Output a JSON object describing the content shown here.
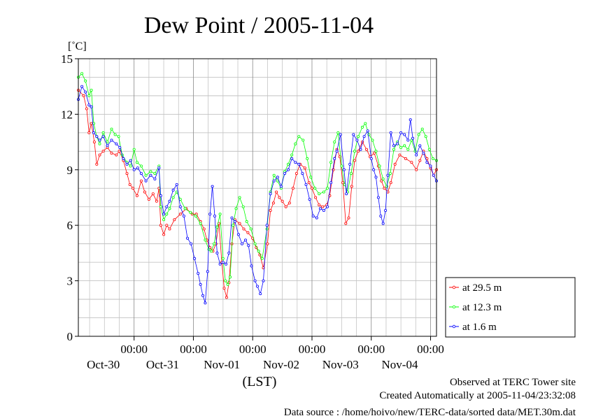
{
  "title": "Dew Point / 2005-11-04",
  "chart_data": {
    "type": "line",
    "title": "Dew Point / 2005-11-04",
    "ylabel": "[˚C]",
    "xlabel": "(LST)",
    "ylim": [
      0,
      15
    ],
    "yticks": [
      0,
      3,
      6,
      9,
      12,
      15
    ],
    "grid": true,
    "legend_position": "right",
    "time_tick_label": "00:00",
    "x_labels": [
      "Oct-30",
      "Oct-31",
      "Nov-01",
      "Nov-02",
      "Nov-03",
      "Nov-04"
    ],
    "x_start_day_offset": -0.94,
    "x_end_day_offset": 5.1,
    "series": [
      {
        "name": "at 29.5 m",
        "color": "#ff0000",
        "points": [
          [
            -0.94,
            13.3
          ],
          [
            -0.85,
            13.0
          ],
          [
            -0.8,
            12.3
          ],
          [
            -0.76,
            11.0
          ],
          [
            -0.72,
            11.5
          ],
          [
            -0.67,
            10.5
          ],
          [
            -0.63,
            9.3
          ],
          [
            -0.58,
            9.8
          ],
          [
            -0.52,
            10.0
          ],
          [
            -0.45,
            10.2
          ],
          [
            -0.38,
            9.9
          ],
          [
            -0.3,
            9.8
          ],
          [
            -0.25,
            10.0
          ],
          [
            -0.18,
            9.5
          ],
          [
            -0.12,
            8.8
          ],
          [
            -0.07,
            8.2
          ],
          [
            -0.02,
            8.0
          ],
          [
            0.05,
            7.6
          ],
          [
            0.12,
            8.4
          ],
          [
            0.18,
            7.8
          ],
          [
            0.25,
            7.4
          ],
          [
            0.32,
            7.7
          ],
          [
            0.38,
            7.3
          ],
          [
            0.42,
            8.0
          ],
          [
            0.45,
            6.0
          ],
          [
            0.5,
            5.5
          ],
          [
            0.55,
            6.0
          ],
          [
            0.6,
            5.8
          ],
          [
            0.68,
            6.3
          ],
          [
            0.78,
            6.6
          ],
          [
            0.88,
            6.9
          ],
          [
            0.98,
            6.6
          ],
          [
            1.05,
            6.6
          ],
          [
            1.12,
            6.2
          ],
          [
            1.18,
            5.8
          ],
          [
            1.23,
            5.2
          ],
          [
            1.28,
            4.8
          ],
          [
            1.33,
            4.6
          ],
          [
            1.38,
            5.0
          ],
          [
            1.43,
            6.1
          ],
          [
            1.48,
            4.0
          ],
          [
            1.52,
            2.6
          ],
          [
            1.56,
            2.1
          ],
          [
            1.6,
            2.9
          ],
          [
            1.65,
            5.0
          ],
          [
            1.7,
            6.3
          ],
          [
            1.78,
            6.1
          ],
          [
            1.85,
            5.8
          ],
          [
            1.92,
            5.6
          ],
          [
            2.0,
            5.3
          ],
          [
            2.06,
            4.8
          ],
          [
            2.12,
            4.4
          ],
          [
            2.18,
            3.7
          ],
          [
            2.25,
            5.0
          ],
          [
            2.3,
            6.8
          ],
          [
            2.35,
            7.2
          ],
          [
            2.4,
            7.8
          ],
          [
            2.45,
            7.5
          ],
          [
            2.5,
            7.3
          ],
          [
            2.56,
            7.0
          ],
          [
            2.62,
            7.2
          ],
          [
            2.68,
            8.0
          ],
          [
            2.74,
            8.8
          ],
          [
            2.8,
            9.3
          ],
          [
            2.88,
            9.1
          ],
          [
            2.95,
            8.3
          ],
          [
            3.0,
            8.0
          ],
          [
            3.06,
            7.5
          ],
          [
            3.12,
            7.1
          ],
          [
            3.18,
            7.0
          ],
          [
            3.25,
            7.1
          ],
          [
            3.3,
            7.6
          ],
          [
            3.36,
            9.0
          ],
          [
            3.42,
            10.1
          ],
          [
            3.47,
            9.7
          ],
          [
            3.52,
            8.3
          ],
          [
            3.57,
            6.1
          ],
          [
            3.62,
            6.4
          ],
          [
            3.67,
            8.1
          ],
          [
            3.72,
            9.5
          ],
          [
            3.78,
            10.0
          ],
          [
            3.85,
            10.5
          ],
          [
            3.92,
            10.1
          ],
          [
            3.98,
            9.7
          ],
          [
            4.05,
            9.9
          ],
          [
            4.12,
            9.2
          ],
          [
            4.17,
            8.4
          ],
          [
            4.22,
            8.0
          ],
          [
            4.28,
            7.8
          ],
          [
            4.33,
            8.3
          ],
          [
            4.4,
            9.3
          ],
          [
            4.48,
            9.8
          ],
          [
            4.58,
            9.6
          ],
          [
            4.68,
            9.4
          ],
          [
            4.76,
            9.0
          ],
          [
            4.82,
            9.5
          ],
          [
            4.88,
            10.0
          ],
          [
            4.94,
            9.6
          ],
          [
            5.0,
            9.1
          ],
          [
            5.05,
            8.7
          ],
          [
            5.1,
            9.0
          ]
        ]
      },
      {
        "name": "at 12.3 m",
        "color": "#00ff00",
        "points": [
          [
            -0.94,
            14.0
          ],
          [
            -0.88,
            14.2
          ],
          [
            -0.82,
            13.8
          ],
          [
            -0.76,
            13.0
          ],
          [
            -0.72,
            13.3
          ],
          [
            -0.68,
            11.5
          ],
          [
            -0.63,
            10.8
          ],
          [
            -0.58,
            10.4
          ],
          [
            -0.52,
            11.0
          ],
          [
            -0.45,
            10.5
          ],
          [
            -0.38,
            11.2
          ],
          [
            -0.32,
            10.9
          ],
          [
            -0.26,
            10.8
          ],
          [
            -0.2,
            9.8
          ],
          [
            -0.12,
            9.4
          ],
          [
            -0.06,
            9.2
          ],
          [
            0.0,
            10.1
          ],
          [
            0.05,
            9.4
          ],
          [
            0.12,
            9.2
          ],
          [
            0.2,
            8.7
          ],
          [
            0.28,
            8.9
          ],
          [
            0.35,
            8.8
          ],
          [
            0.42,
            9.2
          ],
          [
            0.45,
            7.0
          ],
          [
            0.5,
            6.3
          ],
          [
            0.55,
            6.6
          ],
          [
            0.6,
            6.9
          ],
          [
            0.66,
            7.5
          ],
          [
            0.72,
            7.8
          ],
          [
            0.78,
            7.4
          ],
          [
            0.86,
            6.9
          ],
          [
            0.95,
            6.7
          ],
          [
            1.04,
            6.5
          ],
          [
            1.12,
            6.1
          ],
          [
            1.2,
            5.2
          ],
          [
            1.26,
            4.7
          ],
          [
            1.3,
            4.6
          ],
          [
            1.35,
            5.0
          ],
          [
            1.4,
            5.9
          ],
          [
            1.45,
            6.6
          ],
          [
            1.5,
            4.2
          ],
          [
            1.54,
            3.0
          ],
          [
            1.58,
            2.8
          ],
          [
            1.62,
            3.2
          ],
          [
            1.67,
            6.0
          ],
          [
            1.72,
            6.9
          ],
          [
            1.78,
            7.5
          ],
          [
            1.84,
            7.0
          ],
          [
            1.9,
            6.2
          ],
          [
            1.97,
            5.8
          ],
          [
            2.04,
            5.0
          ],
          [
            2.1,
            4.6
          ],
          [
            2.16,
            4.2
          ],
          [
            2.24,
            5.8
          ],
          [
            2.3,
            7.8
          ],
          [
            2.36,
            8.7
          ],
          [
            2.42,
            8.4
          ],
          [
            2.48,
            8.0
          ],
          [
            2.54,
            8.9
          ],
          [
            2.6,
            9.3
          ],
          [
            2.66,
            9.8
          ],
          [
            2.72,
            10.4
          ],
          [
            2.78,
            10.8
          ],
          [
            2.85,
            10.6
          ],
          [
            2.92,
            9.6
          ],
          [
            2.98,
            8.6
          ],
          [
            3.05,
            8.0
          ],
          [
            3.12,
            7.7
          ],
          [
            3.2,
            7.8
          ],
          [
            3.26,
            8.0
          ],
          [
            3.32,
            9.4
          ],
          [
            3.38,
            10.5
          ],
          [
            3.44,
            11.0
          ],
          [
            3.5,
            9.2
          ],
          [
            3.55,
            8.2
          ],
          [
            3.6,
            7.8
          ],
          [
            3.66,
            8.8
          ],
          [
            3.72,
            10.0
          ],
          [
            3.78,
            10.8
          ],
          [
            3.85,
            11.3
          ],
          [
            3.9,
            11.5
          ],
          [
            3.96,
            10.9
          ],
          [
            4.02,
            10.6
          ],
          [
            4.08,
            10.0
          ],
          [
            4.14,
            9.2
          ],
          [
            4.2,
            8.5
          ],
          [
            4.26,
            8.1
          ],
          [
            4.32,
            8.8
          ],
          [
            4.38,
            10.1
          ],
          [
            4.44,
            10.5
          ],
          [
            4.5,
            10.2
          ],
          [
            4.56,
            10.3
          ],
          [
            4.62,
            10.1
          ],
          [
            4.68,
            10.6
          ],
          [
            4.74,
            10.0
          ],
          [
            4.8,
            10.9
          ],
          [
            4.86,
            11.2
          ],
          [
            4.92,
            10.8
          ],
          [
            4.98,
            10.1
          ],
          [
            5.04,
            9.6
          ],
          [
            5.1,
            9.5
          ]
        ]
      },
      {
        "name": "at 1.6 m",
        "color": "#0000ff",
        "points": [
          [
            -0.94,
            12.8
          ],
          [
            -0.88,
            13.5
          ],
          [
            -0.82,
            13.2
          ],
          [
            -0.76,
            12.5
          ],
          [
            -0.72,
            12.4
          ],
          [
            -0.68,
            11.0
          ],
          [
            -0.63,
            10.8
          ],
          [
            -0.58,
            10.6
          ],
          [
            -0.52,
            10.8
          ],
          [
            -0.45,
            10.3
          ],
          [
            -0.38,
            10.6
          ],
          [
            -0.3,
            10.4
          ],
          [
            -0.24,
            10.2
          ],
          [
            -0.18,
            9.6
          ],
          [
            -0.12,
            9.3
          ],
          [
            -0.06,
            9.5
          ],
          [
            0.0,
            9.0
          ],
          [
            0.06,
            9.1
          ],
          [
            0.12,
            8.8
          ],
          [
            0.2,
            8.4
          ],
          [
            0.28,
            8.7
          ],
          [
            0.35,
            8.5
          ],
          [
            0.42,
            9.1
          ],
          [
            0.45,
            7.6
          ],
          [
            0.5,
            6.6
          ],
          [
            0.55,
            7.0
          ],
          [
            0.6,
            7.3
          ],
          [
            0.66,
            7.9
          ],
          [
            0.72,
            8.2
          ],
          [
            0.78,
            7.0
          ],
          [
            0.84,
            6.5
          ],
          [
            0.9,
            5.3
          ],
          [
            0.96,
            5.0
          ],
          [
            1.02,
            4.2
          ],
          [
            1.08,
            3.4
          ],
          [
            1.12,
            2.8
          ],
          [
            1.16,
            2.2
          ],
          [
            1.2,
            1.8
          ],
          [
            1.24,
            3.5
          ],
          [
            1.28,
            6.6
          ],
          [
            1.32,
            8.1
          ],
          [
            1.36,
            6.5
          ],
          [
            1.4,
            4.5
          ],
          [
            1.45,
            3.9
          ],
          [
            1.5,
            4.0
          ],
          [
            1.55,
            3.9
          ],
          [
            1.6,
            4.5
          ],
          [
            1.65,
            6.4
          ],
          [
            1.7,
            6.2
          ],
          [
            1.76,
            5.5
          ],
          [
            1.82,
            5.0
          ],
          [
            1.88,
            5.2
          ],
          [
            1.93,
            4.9
          ],
          [
            1.98,
            3.8
          ],
          [
            2.04,
            3.0
          ],
          [
            2.08,
            2.7
          ],
          [
            2.13,
            2.3
          ],
          [
            2.18,
            3.0
          ],
          [
            2.24,
            6.0
          ],
          [
            2.3,
            7.7
          ],
          [
            2.36,
            8.4
          ],
          [
            2.42,
            8.6
          ],
          [
            2.48,
            8.1
          ],
          [
            2.54,
            8.8
          ],
          [
            2.6,
            9.0
          ],
          [
            2.66,
            9.6
          ],
          [
            2.72,
            9.4
          ],
          [
            2.78,
            9.3
          ],
          [
            2.84,
            8.8
          ],
          [
            2.9,
            8.2
          ],
          [
            2.96,
            7.4
          ],
          [
            3.02,
            6.5
          ],
          [
            3.08,
            6.4
          ],
          [
            3.14,
            6.9
          ],
          [
            3.2,
            6.8
          ],
          [
            3.26,
            7.0
          ],
          [
            3.32,
            8.3
          ],
          [
            3.38,
            9.6
          ],
          [
            3.42,
            10.0
          ],
          [
            3.48,
            10.9
          ],
          [
            3.54,
            9.0
          ],
          [
            3.58,
            7.7
          ],
          [
            3.64,
            9.3
          ],
          [
            3.7,
            10.9
          ],
          [
            3.76,
            10.6
          ],
          [
            3.82,
            10.1
          ],
          [
            3.88,
            10.8
          ],
          [
            3.94,
            11.1
          ],
          [
            4.0,
            9.6
          ],
          [
            4.04,
            9.0
          ],
          [
            4.08,
            8.6
          ],
          [
            4.12,
            7.5
          ],
          [
            4.16,
            6.5
          ],
          [
            4.2,
            6.1
          ],
          [
            4.24,
            6.8
          ],
          [
            4.28,
            8.7
          ],
          [
            4.33,
            11.0
          ],
          [
            4.38,
            10.3
          ],
          [
            4.44,
            10.4
          ],
          [
            4.5,
            11.0
          ],
          [
            4.56,
            10.9
          ],
          [
            4.62,
            10.6
          ],
          [
            4.66,
            11.7
          ],
          [
            4.7,
            10.7
          ],
          [
            4.76,
            9.8
          ],
          [
            4.82,
            10.3
          ],
          [
            4.88,
            9.9
          ],
          [
            4.94,
            9.4
          ],
          [
            5.0,
            9.2
          ],
          [
            5.05,
            8.7
          ],
          [
            5.1,
            8.4
          ]
        ]
      }
    ]
  },
  "footer": {
    "line1": "Observed at TERC Tower site",
    "line2": "Created Automatically at 2005-11-04/23:32:08",
    "line3": "Data source : /home/hoivo/new/TERC-data/sorted  data/MET.30m.dat"
  }
}
